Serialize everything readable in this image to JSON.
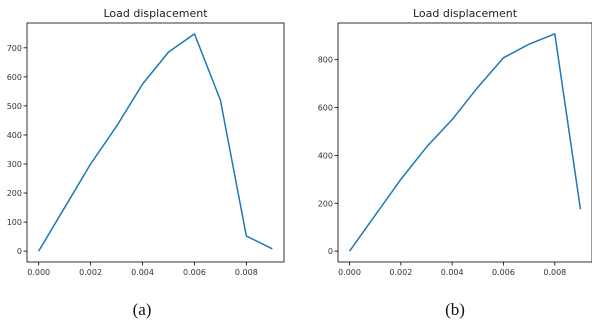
{
  "chart_data": [
    {
      "type": "line",
      "title": "Load displacement",
      "caption": "(a)",
      "color": "#1f77b4",
      "x": [
        0.0,
        0.001,
        0.002,
        0.003,
        0.004,
        0.005,
        0.006,
        0.007,
        0.008,
        0.009
      ],
      "series": [
        {
          "values": [
            0,
            150,
            300,
            430,
            575,
            685,
            748,
            520,
            52,
            8
          ]
        }
      ],
      "xlim": [
        -0.00045,
        0.00945
      ],
      "ylim": [
        -37.4,
        785.4
      ],
      "xticks": [
        0.0,
        0.002,
        0.004,
        0.006,
        0.008
      ],
      "xtick_labels": [
        "0.000",
        "0.002",
        "0.004",
        "0.006",
        "0.008"
      ],
      "yticks": [
        0,
        100,
        200,
        300,
        400,
        500,
        600,
        700
      ],
      "ytick_labels": [
        "0",
        "100",
        "200",
        "300",
        "400",
        "500",
        "600",
        "700"
      ],
      "grid": false
    },
    {
      "type": "line",
      "title": "Load displacement",
      "caption": "(b)",
      "color": "#1f77b4",
      "x": [
        0.0,
        0.001,
        0.002,
        0.003,
        0.004,
        0.005,
        0.006,
        0.007,
        0.008,
        0.009
      ],
      "series": [
        {
          "values": [
            0,
            150,
            300,
            435,
            550,
            685,
            808,
            865,
            908,
            175
          ]
        }
      ],
      "xlim": [
        -0.00045,
        0.00945
      ],
      "ylim": [
        -45.4,
        953.4
      ],
      "xticks": [
        0.0,
        0.002,
        0.004,
        0.006,
        0.008
      ],
      "xtick_labels": [
        "0.000",
        "0.002",
        "0.004",
        "0.006",
        "0.008"
      ],
      "yticks": [
        0,
        200,
        400,
        600,
        800
      ],
      "ytick_labels": [
        "0",
        "200",
        "400",
        "600",
        "800"
      ],
      "grid": false
    }
  ]
}
